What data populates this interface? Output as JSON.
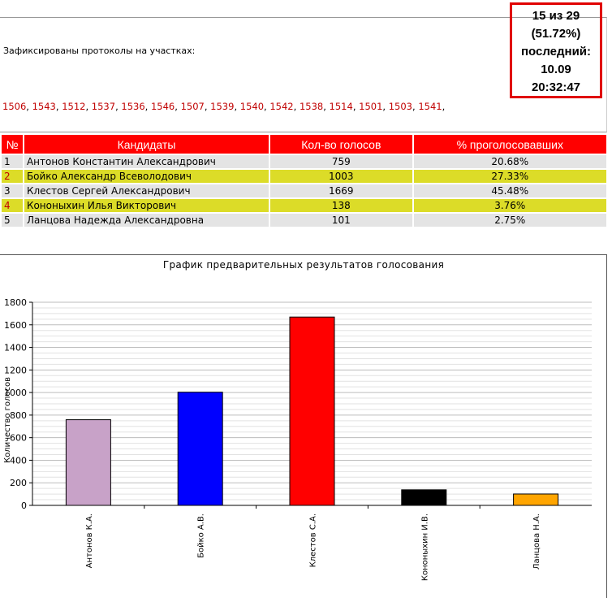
{
  "header": {
    "intro": "Зафиксированы протоколы на участках:",
    "stations": [
      "1506",
      "1543",
      "1512",
      "1537",
      "1536",
      "1546",
      "1507",
      "1539",
      "1540",
      "1542",
      "1538",
      "1514",
      "1501",
      "1503",
      "1541"
    ],
    "status": {
      "count": "15 из 29",
      "percent": "(51.72%)",
      "last_label": "последний:",
      "date": "10.09",
      "time": "20:32:47"
    }
  },
  "table": {
    "headers": [
      "№",
      "Кандидаты",
      "Кол-во голосов",
      "% проголосовавших"
    ],
    "rows": [
      {
        "n": "1",
        "name": "Антонов Константин Александрович",
        "votes": "759",
        "pct": "20.68%"
      },
      {
        "n": "2",
        "name": "Бойко Александр Всеволодович",
        "votes": "1003",
        "pct": "27.33%"
      },
      {
        "n": "3",
        "name": "Клестов Сергей Александрович",
        "votes": "1669",
        "pct": "45.48%"
      },
      {
        "n": "4",
        "name": "Кононыхин Илья Викторович",
        "votes": "138",
        "pct": "3.76%"
      },
      {
        "n": "5",
        "name": "Ланцова Надежда Александровна",
        "votes": "101",
        "pct": "2.75%"
      }
    ]
  },
  "chart_data": {
    "type": "bar",
    "title": "График предварительных результатов голосования",
    "xlabel": "",
    "ylabel": "Количество голосов",
    "categories": [
      "Антонов К.А.",
      "Бойко А.В.",
      "Клестов С.А.",
      "Кононыхин И.В.",
      "Ланцова Н.А."
    ],
    "values": [
      759,
      1003,
      1669,
      138,
      101
    ],
    "colors": [
      "#c8a2c8",
      "#0000ff",
      "#ff0000",
      "#000000",
      "#ffa500"
    ],
    "ylim": [
      0,
      1800
    ],
    "yticks": [
      0,
      200,
      400,
      600,
      800,
      1000,
      1200,
      1400,
      1600,
      1800
    ],
    "grid": true
  }
}
